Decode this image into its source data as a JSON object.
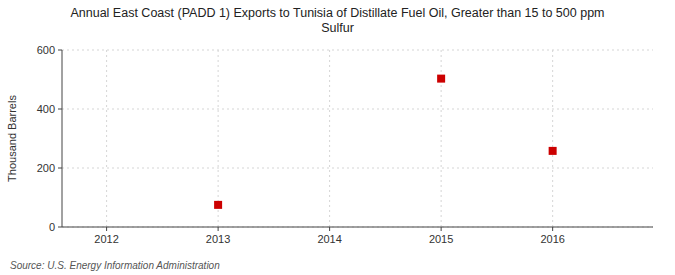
{
  "chart_data": {
    "type": "scatter",
    "title": "Annual East Coast (PADD 1) Exports to Tunisia of Distillate Fuel Oil, Greater than 15 to 500 ppm\nSulfur",
    "ylabel": "Thousand Barrels",
    "annotations": [
      "Source: U.S. Energy Information Administration"
    ],
    "x": [
      2013,
      2015,
      2016
    ],
    "values": [
      75,
      503,
      258
    ],
    "xlim": [
      2011.6,
      2016.9
    ],
    "ylim": [
      0,
      600
    ],
    "xticks": [
      2012,
      2013,
      2014,
      2015,
      2016
    ],
    "yticks": [
      0,
      200,
      400,
      600
    ],
    "color": "#cc0000",
    "marker": "square",
    "grid": true
  }
}
